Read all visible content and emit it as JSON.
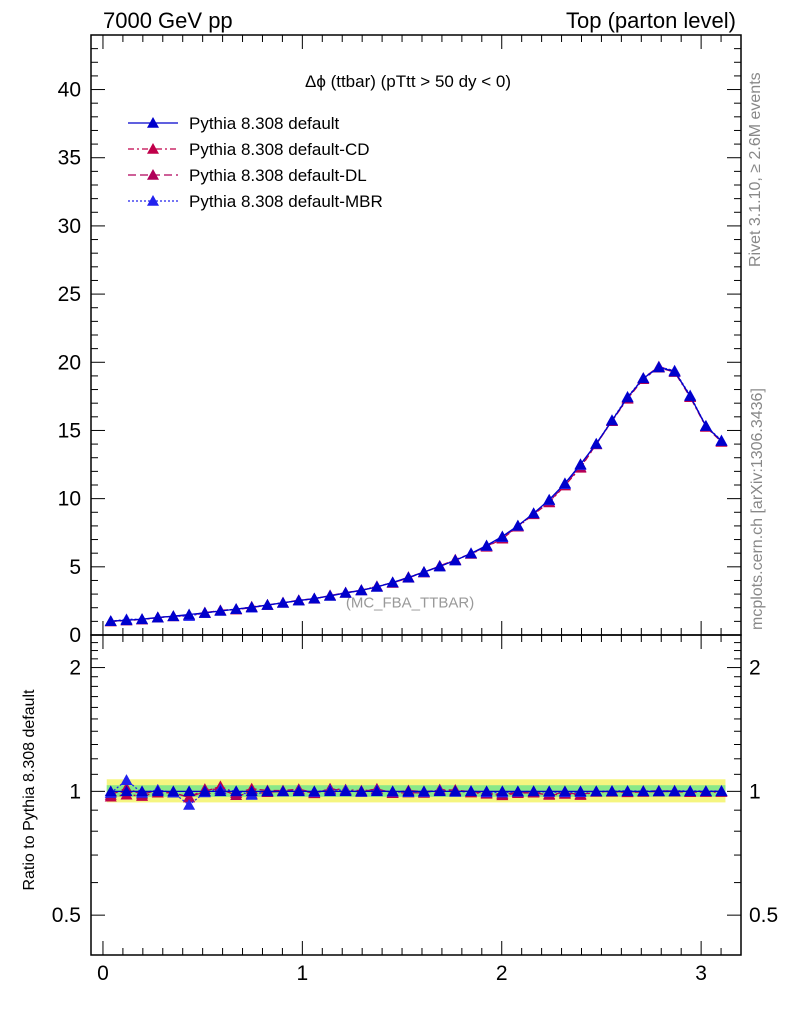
{
  "header": {
    "left": "7000 GeV pp",
    "right": "Top (parton level)"
  },
  "side_labels": {
    "rivet": "Rivet 3.1.10, ≥ 2.6M events",
    "mcplots": "mcplots.cern.ch [arXiv:1306.3436]"
  },
  "chart_data": {
    "type": "line",
    "title": "Δϕ (ttbar) (pTtt > 50 dy < 0)",
    "watermark": "(MC_FBA_TTBAR)",
    "xlim": [
      -0.06,
      3.2
    ],
    "main_ylim": [
      0,
      44
    ],
    "main_yticks": [
      "0",
      "5",
      "10",
      "15",
      "20",
      "25",
      "30",
      "35",
      "40"
    ],
    "ratio_ylabel": "Ratio to Pythia 8.308 default",
    "ratio_ylim": [
      0.4,
      2.4
    ],
    "ratio_yticks": [
      "0.5",
      "1",
      "2"
    ],
    "xticks": [
      "0",
      "1",
      "2",
      "3"
    ],
    "band_colors": {
      "outer": "#f5f580",
      "inner": "#88e888"
    },
    "x": [
      0.039,
      0.118,
      0.196,
      0.275,
      0.353,
      0.432,
      0.511,
      0.589,
      0.668,
      0.746,
      0.825,
      0.903,
      0.982,
      1.06,
      1.139,
      1.217,
      1.296,
      1.374,
      1.453,
      1.532,
      1.61,
      1.689,
      1.767,
      1.846,
      1.924,
      2.003,
      2.081,
      2.16,
      2.238,
      2.317,
      2.395,
      2.474,
      2.553,
      2.631,
      2.71,
      2.788,
      2.867,
      2.945,
      3.024,
      3.102
    ],
    "series": [
      {
        "name": "Pythia 8.308 default",
        "color": "#0000cc",
        "dash": "",
        "values": [
          1.02,
          1.08,
          1.16,
          1.28,
          1.38,
          1.5,
          1.62,
          1.76,
          1.9,
          2.04,
          2.2,
          2.36,
          2.52,
          2.68,
          2.86,
          3.08,
          3.28,
          3.52,
          3.86,
          4.22,
          4.62,
          5.02,
          5.48,
          5.98,
          6.56,
          7.22,
          8.02,
          8.92,
          9.92,
          11.12,
          12.52,
          14.02,
          15.72,
          17.42,
          18.82,
          19.62,
          19.32,
          17.52,
          15.32,
          14.22
        ]
      },
      {
        "name": "Pythia 8.308 default-CD",
        "color": "#c0004a",
        "dash": "6,3,2,3",
        "values": [
          0.99,
          1.06,
          1.13,
          1.27,
          1.37,
          1.45,
          1.62,
          1.81,
          1.88,
          2.07,
          2.21,
          2.37,
          2.55,
          2.66,
          2.9,
          3.11,
          3.29,
          3.56,
          3.83,
          4.24,
          4.61,
          5.05,
          5.5,
          5.94,
          6.47,
          7.06,
          7.94,
          8.85,
          9.72,
          10.96,
          12.26,
          13.98,
          15.68,
          17.32,
          18.76,
          19.6,
          19.28,
          17.44,
          15.26,
          14.16
        ]
      },
      {
        "name": "Pythia 8.308 default-DL",
        "color": "#b0005a",
        "dash": "8,4",
        "values": [
          1.0,
          1.1,
          1.14,
          1.29,
          1.37,
          1.45,
          1.64,
          1.78,
          1.86,
          2.01,
          2.19,
          2.36,
          2.54,
          2.65,
          2.9,
          3.09,
          3.27,
          3.57,
          3.82,
          4.19,
          4.58,
          5.07,
          5.52,
          5.97,
          6.5,
          7.11,
          7.98,
          8.89,
          9.76,
          11.04,
          12.31,
          13.98,
          15.72,
          17.36,
          18.84,
          19.68,
          19.36,
          17.48,
          15.31,
          14.22
        ]
      },
      {
        "name": "Pythia 8.308 default-MBR",
        "color": "#2222ee",
        "dash": "2,2",
        "values": [
          1.01,
          1.15,
          1.15,
          1.29,
          1.37,
          1.39,
          1.61,
          1.78,
          1.9,
          2.0,
          2.2,
          2.36,
          2.53,
          2.67,
          2.88,
          3.1,
          3.27,
          3.54,
          3.85,
          4.2,
          4.6,
          5.04,
          5.46,
          5.99,
          6.52,
          7.17,
          8.0,
          8.92,
          9.88,
          11.06,
          12.46,
          14.02,
          15.75,
          17.46,
          18.84,
          19.66,
          19.38,
          17.56,
          15.34,
          14.26
        ]
      }
    ]
  }
}
